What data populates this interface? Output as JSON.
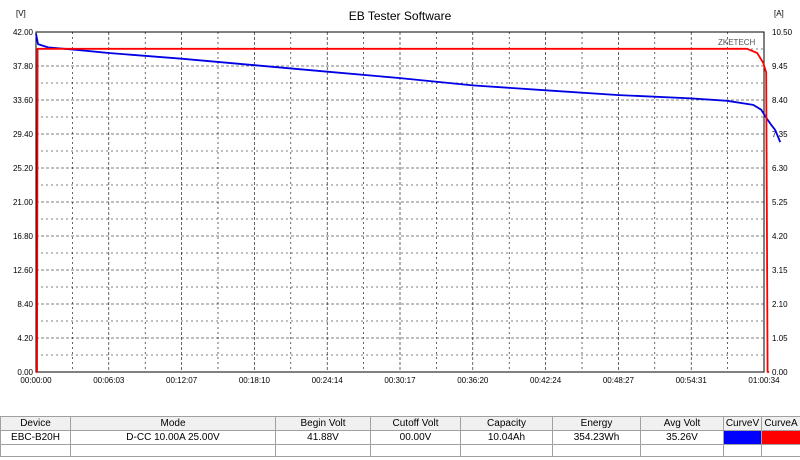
{
  "window": {
    "title": "EB Tester Software"
  },
  "chart_data": {
    "type": "line",
    "title": "EB Tester Software",
    "y_left_unit": "[V]",
    "y_right_unit": "[A]",
    "y_left_ticks": [
      "0.00",
      "4.20",
      "8.40",
      "12.60",
      "16.80",
      "21.00",
      "25.20",
      "29.40",
      "33.60",
      "37.80",
      "42.00"
    ],
    "y_right_ticks": [
      "0.00",
      "1.05",
      "2.10",
      "3.15",
      "4.20",
      "5.25",
      "6.30",
      "7.35",
      "8.40",
      "9.45",
      "10.50"
    ],
    "x_ticks": [
      "00:00:00",
      "00:06:03",
      "00:12:07",
      "00:18:10",
      "00:24:14",
      "00:30:17",
      "00:36:20",
      "00:42:24",
      "00:48:27",
      "00:54:31",
      "01:00:34"
    ],
    "ylim_left": [
      0,
      42
    ],
    "ylim_right": [
      0,
      10.5
    ],
    "xlim_seconds": [
      0,
      3634
    ],
    "grid": true,
    "watermark": "ZKETECH",
    "series": [
      {
        "axis": "left",
        "color": "#0000e6",
        "points": [
          [
            0,
            41.8
          ],
          [
            10,
            40.5
          ],
          [
            60,
            40.1
          ],
          [
            200,
            39.8
          ],
          [
            363,
            39.4
          ],
          [
            726,
            38.7
          ],
          [
            1090,
            37.9
          ],
          [
            1454,
            37.1
          ],
          [
            1818,
            36.3
          ],
          [
            2180,
            35.4
          ],
          [
            2545,
            34.8
          ],
          [
            2910,
            34.2
          ],
          [
            3270,
            33.8
          ],
          [
            3450,
            33.5
          ],
          [
            3580,
            33.0
          ],
          [
            3620,
            32.4
          ],
          [
            3640,
            31.6
          ],
          [
            3668,
            30.6
          ],
          [
            3690,
            29.9
          ],
          [
            3705,
            29.0
          ],
          [
            3715,
            28.4
          ]
        ]
      },
      {
        "axis": "right",
        "color": "#ff0000",
        "points": [
          [
            0,
            0
          ],
          [
            5,
            0
          ],
          [
            8,
            9.98
          ],
          [
            3550,
            9.98
          ],
          [
            3600,
            9.85
          ],
          [
            3630,
            9.55
          ],
          [
            3645,
            9.25
          ],
          [
            3652,
            0
          ],
          [
            3660,
            0
          ]
        ]
      }
    ]
  },
  "table": {
    "headers": [
      "Device",
      "Mode",
      "Begin Volt",
      "Cutoff Volt",
      "Capacity",
      "Energy",
      "Avg Volt",
      "CurveV",
      "CurveA"
    ],
    "row": {
      "device": "EBC-B20H",
      "mode": "D-CC  10.00A  25.00V",
      "begin_volt": "41.88V",
      "cutoff_volt": "00.00V",
      "capacity": "10.04Ah",
      "energy": "354.23Wh",
      "avg_volt": "35.26V"
    },
    "curve_v_color": "#0000ff",
    "curve_a_color": "#ff0000"
  }
}
